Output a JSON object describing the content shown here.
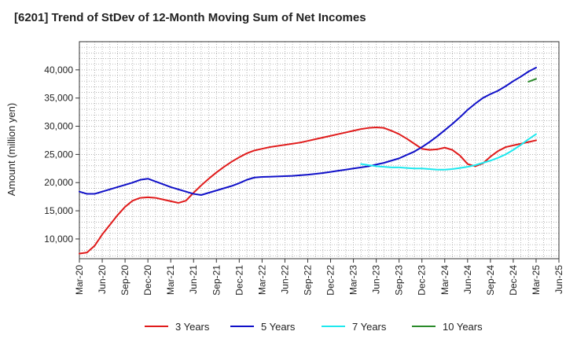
{
  "title": "[6201]  Trend of StDev of 12-Month Moving Sum of Net Incomes",
  "chart_data": {
    "type": "line",
    "title": "[6201]  Trend of StDev of 12-Month Moving Sum of Net Incomes",
    "ylabel": "Amount (million yen)",
    "xlabel": "",
    "ylim": [
      6500,
      45000
    ],
    "yticks": [
      10000,
      15000,
      20000,
      25000,
      30000,
      35000,
      40000
    ],
    "ytick_labels": [
      "10,000",
      "15,000",
      "20,000",
      "25,000",
      "30,000",
      "35,000",
      "40,000"
    ],
    "xlim": [
      "2020-03",
      "2025-06"
    ],
    "xtick_labels": [
      "Mar-20",
      "Jun-20",
      "Sep-20",
      "Dec-20",
      "Mar-21",
      "Jun-21",
      "Sep-21",
      "Dec-21",
      "Mar-22",
      "Jun-22",
      "Sep-22",
      "Dec-22",
      "Mar-23",
      "Jun-23",
      "Sep-23",
      "Dec-23",
      "Mar-24",
      "Jun-24",
      "Sep-24",
      "Dec-24",
      "Mar-25",
      "Jun-25"
    ],
    "grid": true,
    "legend_position": "bottom",
    "x": [
      "2020-03",
      "2020-04",
      "2020-05",
      "2020-06",
      "2020-07",
      "2020-08",
      "2020-09",
      "2020-10",
      "2020-11",
      "2020-12",
      "2021-01",
      "2021-02",
      "2021-03",
      "2021-04",
      "2021-05",
      "2021-06",
      "2021-07",
      "2021-08",
      "2021-09",
      "2021-10",
      "2021-11",
      "2021-12",
      "2022-01",
      "2022-02",
      "2022-03",
      "2022-04",
      "2022-05",
      "2022-06",
      "2022-07",
      "2022-08",
      "2022-09",
      "2022-10",
      "2022-11",
      "2022-12",
      "2023-01",
      "2023-02",
      "2023-03",
      "2023-04",
      "2023-05",
      "2023-06",
      "2023-07",
      "2023-08",
      "2023-09",
      "2023-10",
      "2023-11",
      "2023-12",
      "2024-01",
      "2024-02",
      "2024-03",
      "2024-04",
      "2024-05",
      "2024-06",
      "2024-07",
      "2024-08",
      "2024-09",
      "2024-10",
      "2024-11",
      "2024-12",
      "2025-01",
      "2025-02",
      "2025-03"
    ],
    "series": [
      {
        "name": "3 Years",
        "color": "#e01b1b",
        "values": [
          7400,
          7600,
          8800,
          10800,
          12500,
          14200,
          15700,
          16800,
          17300,
          17400,
          17300,
          17000,
          16700,
          16400,
          16800,
          18200,
          19500,
          20700,
          21800,
          22800,
          23700,
          24500,
          25200,
          25700,
          26000,
          26300,
          26500,
          26700,
          26900,
          27100,
          27400,
          27700,
          28000,
          28300,
          28600,
          28900,
          29200,
          29500,
          29700,
          29800,
          29700,
          29200,
          28600,
          27800,
          26900,
          26000,
          25800,
          25900,
          26200,
          25800,
          24800,
          23300,
          22900,
          23400,
          24600,
          25600,
          26300,
          26600,
          26900,
          27200,
          27500
        ]
      },
      {
        "name": "5 Years",
        "color": "#1010c8",
        "values": [
          18400,
          18000,
          18000,
          18400,
          18800,
          19200,
          19600,
          20000,
          20500,
          20700,
          20200,
          19700,
          19200,
          18800,
          18400,
          18000,
          17800,
          18200,
          18600,
          19000,
          19400,
          19900,
          20500,
          20900,
          21000,
          21050,
          21100,
          21150,
          21200,
          21300,
          21400,
          21550,
          21700,
          21900,
          22100,
          22300,
          22500,
          22700,
          22900,
          23200,
          23500,
          23900,
          24300,
          24900,
          25500,
          26300,
          27200,
          28200,
          29300,
          30400,
          31600,
          32900,
          34000,
          35000,
          35700,
          36300,
          37100,
          38000,
          38800,
          39700,
          40400
        ]
      },
      {
        "name": "7 Years",
        "color": "#1ee8ee",
        "values": [
          null,
          null,
          null,
          null,
          null,
          null,
          null,
          null,
          null,
          null,
          null,
          null,
          null,
          null,
          null,
          null,
          null,
          null,
          null,
          null,
          null,
          null,
          null,
          null,
          null,
          null,
          null,
          null,
          null,
          null,
          null,
          null,
          null,
          null,
          null,
          null,
          null,
          23300,
          23100,
          22900,
          22800,
          22700,
          22700,
          22600,
          22500,
          22500,
          22400,
          22300,
          22300,
          22400,
          22600,
          22800,
          23100,
          23500,
          23900,
          24400,
          25000,
          25800,
          26700,
          27700,
          28600
        ]
      },
      {
        "name": "10 Years",
        "color": "#2a8a2a",
        "values": [
          null,
          null,
          null,
          null,
          null,
          null,
          null,
          null,
          null,
          null,
          null,
          null,
          null,
          null,
          null,
          null,
          null,
          null,
          null,
          null,
          null,
          null,
          null,
          null,
          null,
          null,
          null,
          null,
          null,
          null,
          null,
          null,
          null,
          null,
          null,
          null,
          null,
          null,
          null,
          null,
          null,
          null,
          null,
          null,
          null,
          null,
          null,
          null,
          null,
          null,
          null,
          null,
          null,
          null,
          null,
          null,
          null,
          null,
          null,
          37900,
          38400
        ]
      }
    ]
  }
}
